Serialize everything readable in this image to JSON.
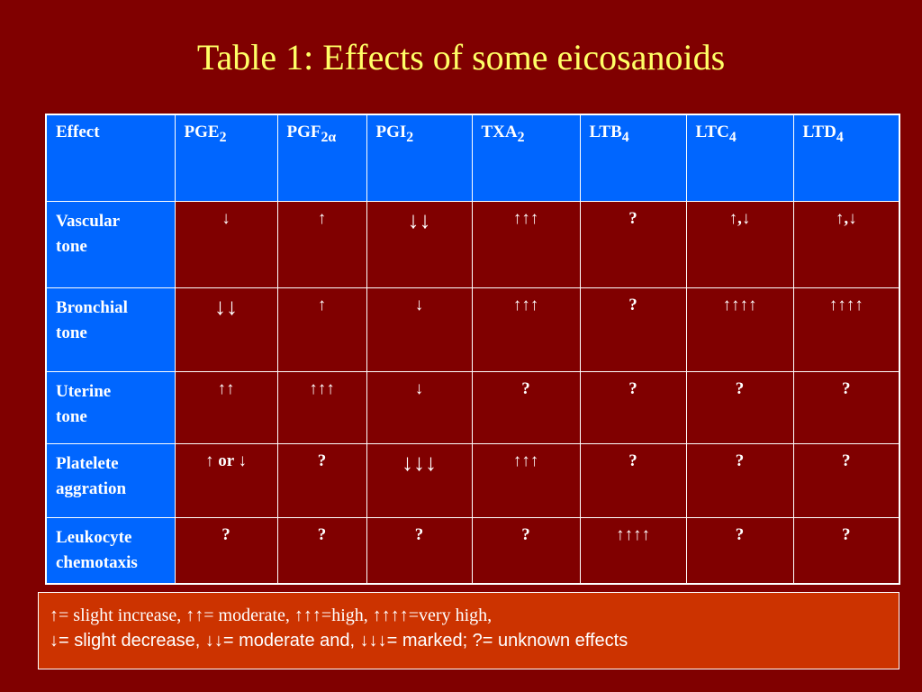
{
  "title": "Table 1: Effects of some eicosanoids",
  "columns": [
    {
      "base": "Effect",
      "sub": ""
    },
    {
      "base": "PGE",
      "sub": "2"
    },
    {
      "base": "PGF",
      "sub": "2α"
    },
    {
      "base": "PGI",
      "sub": "2"
    },
    {
      "base": "TXA",
      "sub": "2"
    },
    {
      "base": "LTB",
      "sub": "4"
    },
    {
      "base": "LTC",
      "sub": "4"
    },
    {
      "base": "LTD",
      "sub": "4"
    }
  ],
  "rows": [
    {
      "label": [
        "Vascular",
        "tone"
      ],
      "cells": [
        "↓",
        "↑",
        "↓↓",
        "↑↑↑",
        "?",
        "↑,↓",
        "↑,↓"
      ]
    },
    {
      "label": [
        "Bronchial",
        "tone"
      ],
      "cells": [
        "↓↓",
        "↑",
        "↓",
        "↑↑↑",
        "?",
        "↑↑↑↑",
        "↑↑↑↑"
      ]
    },
    {
      "label": [
        "Uterine",
        "tone"
      ],
      "cells": [
        "↑↑",
        "↑↑↑",
        "↓",
        "?",
        "?",
        "?",
        "?"
      ]
    },
    {
      "label": [
        "Platelete",
        "aggration"
      ],
      "cells": [
        "↑ or ↓",
        "?",
        "↓↓↓",
        "↑↑↑",
        "?",
        "?",
        "?"
      ]
    },
    {
      "label": [
        "Leukocyte",
        "chemotaxis"
      ],
      "cells": [
        "?",
        "?",
        "?",
        "?",
        "↑↑↑↑",
        "?",
        "?"
      ]
    }
  ],
  "legend": {
    "line1": "↑= slight increase,  ↑↑= moderate,  ↑↑↑=high,  ↑↑↑↑=very high,",
    "line2": "↓= slight decrease,  ↓↓= moderate   and, ↓↓↓=   marked; ?= unknown effects"
  },
  "colors": {
    "background": "#800000",
    "header_blue": "#0066ff",
    "title_yellow": "#ffff66",
    "highlight_yellow": "#ffff00",
    "legend_box": "#cc3300"
  }
}
